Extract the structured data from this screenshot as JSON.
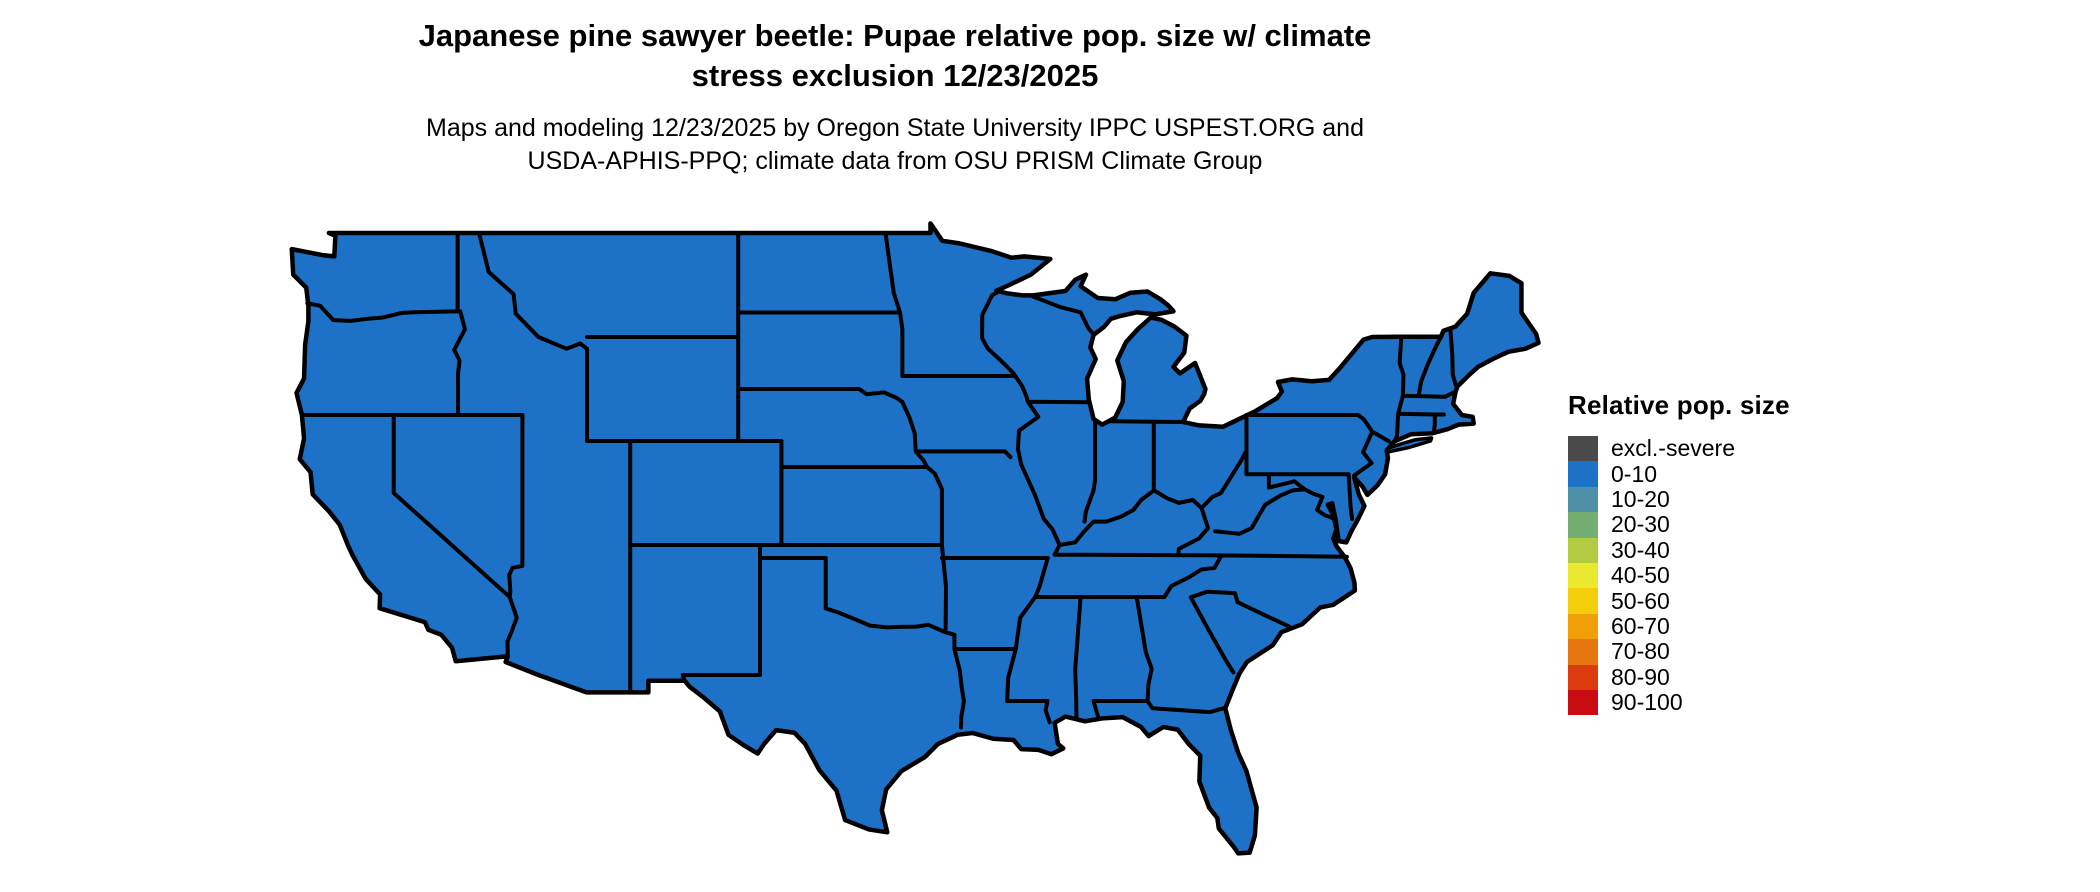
{
  "header": {
    "title_line1": "Japanese pine sawyer beetle: Pupae relative pop. size w/ climate",
    "title_line2": "stress exclusion 12/23/2025",
    "subtitle_line1": "Maps and modeling 12/23/2025 by Oregon State University IPPC USPEST.ORG and",
    "subtitle_line2": "USDA-APHIS-PPQ; climate data from OSU PRISM Climate Group"
  },
  "legend": {
    "title": "Relative pop. size",
    "items": [
      {
        "label": "excl.-severe",
        "color": "#4a4a4a"
      },
      {
        "label": "0-10",
        "color": "#1d72c8"
      },
      {
        "label": "10-20",
        "color": "#4e90a6"
      },
      {
        "label": "20-30",
        "color": "#74ad72"
      },
      {
        "label": "30-40",
        "color": "#b3cb42"
      },
      {
        "label": "40-50",
        "color": "#ebe92f"
      },
      {
        "label": "50-60",
        "color": "#f4ce0b"
      },
      {
        "label": "60-70",
        "color": "#f09f09"
      },
      {
        "label": "70-80",
        "color": "#e87611"
      },
      {
        "label": "80-90",
        "color": "#dc3b0e"
      },
      {
        "label": "90-100",
        "color": "#c90c11"
      }
    ]
  },
  "map": {
    "base_fill_color": "#1d72c8",
    "excluded_fill_color": "#4a4a4a",
    "border_color": "#000000",
    "background_color": "#ffffff"
  }
}
